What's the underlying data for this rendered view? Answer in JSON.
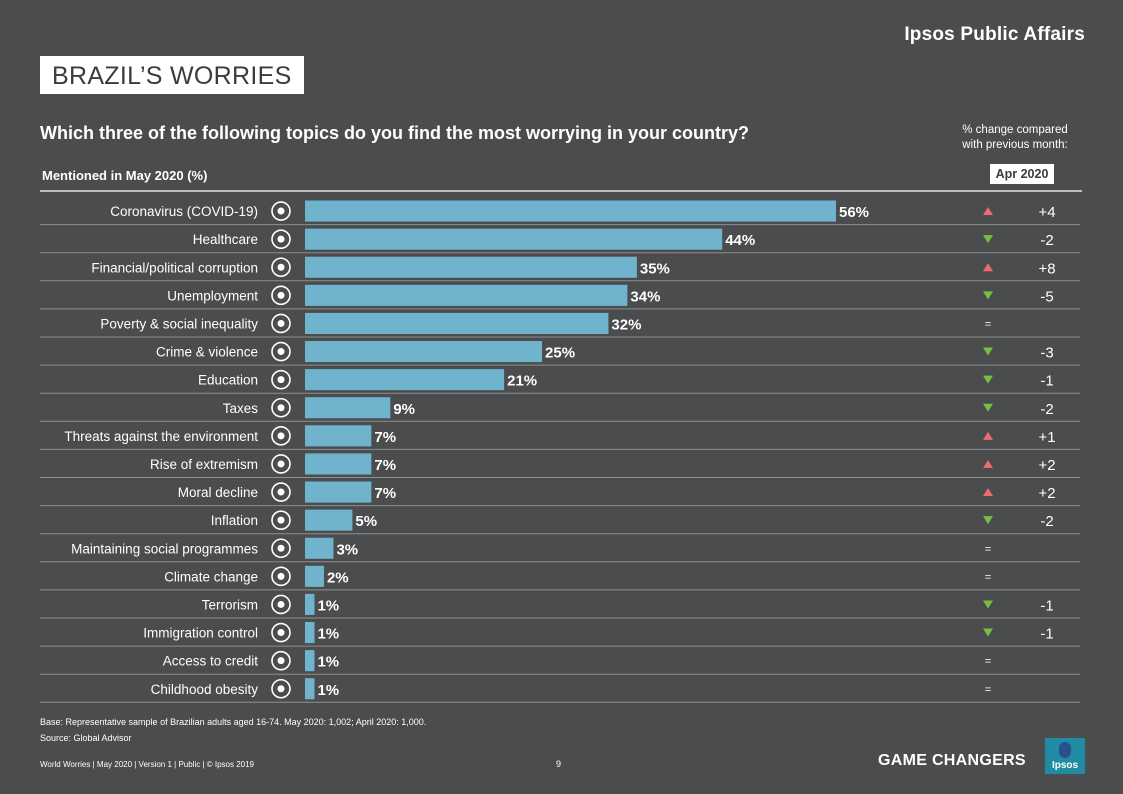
{
  "header": {
    "brand": "Ipsos Public Affairs",
    "title": "BRAZIL’S WORRIES",
    "question": "Which three of the following topics do you find the most worrying in your country?",
    "subheading": "Mentioned in May 2020 (%)",
    "change_caption_line1": "% change compared",
    "change_caption_line2": "with previous month:",
    "comparison_month": "Apr 2020"
  },
  "chart_data": {
    "type": "bar",
    "orientation": "horizontal",
    "xlim": [
      0,
      56
    ],
    "bar_color": "#6fb3cc",
    "categories": [
      "Coronavirus (COVID-19)",
      "Healthcare",
      "Financial/political corruption",
      "Unemployment",
      "Poverty & social inequality",
      "Crime & violence",
      "Education",
      "Taxes",
      "Threats against the environment",
      "Rise of extremism",
      "Moral decline",
      "Inflation",
      "Maintaining social programmes",
      "Climate change",
      "Terrorism",
      "Immigration control",
      "Access to credit",
      "Childhood obesity"
    ],
    "icons": [
      "biohazard-icon",
      "nurse-cap-icon",
      "money-bag-icon",
      "fired-worker-icon",
      "person-icon",
      "gun-icon",
      "graduation-cap-icon",
      "tax-money-icon",
      "polluted-swan-icon",
      "masked-extremist-icon",
      "moral-decline-icon",
      "rising-chart-icon",
      "social-support-icon",
      "burning-globe-icon",
      "skull-crossbones-icon",
      "suitcase-icon",
      "credit-card-icon",
      "obese-child-icon"
    ],
    "values": [
      56,
      44,
      35,
      34,
      32,
      25,
      21,
      9,
      7,
      7,
      7,
      5,
      3,
      2,
      1,
      1,
      1,
      1
    ],
    "value_labels": [
      "56%",
      "44%",
      "35%",
      "34%",
      "32%",
      "25%",
      "21%",
      "9%",
      "7%",
      "7%",
      "7%",
      "5%",
      "3%",
      "2%",
      "1%",
      "1%",
      "1%",
      "1%"
    ],
    "change": [
      "+4",
      "-2",
      "+8",
      "-5",
      "=",
      "-3",
      "-1",
      "-2",
      "+1",
      "+2",
      "+2",
      "-2",
      "=",
      "=",
      "-1",
      "-1",
      "=",
      "="
    ],
    "change_direction": [
      "up",
      "down",
      "up",
      "down",
      "same",
      "down",
      "down",
      "down",
      "up",
      "up",
      "up",
      "down",
      "same",
      "same",
      "down",
      "down",
      "same",
      "same"
    ],
    "colors": {
      "up": "#ef6a6a",
      "down": "#74c043"
    }
  },
  "footer": {
    "base": "Base: Representative sample of Brazilian adults aged 16-74. May 2020: 1,002; April 2020: 1,000.",
    "source": "Source: Global Advisor",
    "left": "World Worries | May 2020 | Version 1 | Public | © Ipsos 2019",
    "page": "9",
    "tagline": "GAME CHANGERS",
    "logo_text": "Ipsos"
  }
}
